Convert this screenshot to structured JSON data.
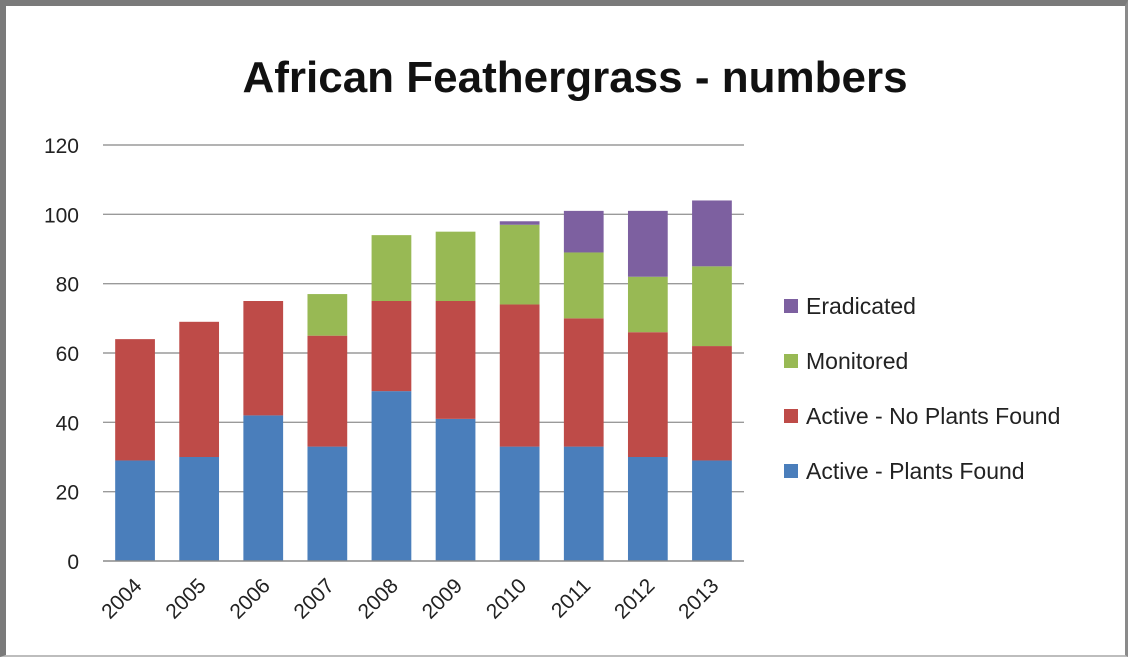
{
  "chart_data": {
    "type": "bar",
    "stacked": true,
    "title": "African Feathergrass - numbers",
    "xlabel": "",
    "ylabel": "",
    "categories": [
      "2004",
      "2005",
      "2006",
      "2007",
      "2008",
      "2009",
      "2010",
      "2011",
      "2012",
      "2013"
    ],
    "ylim": [
      0,
      120
    ],
    "y_ticks": [
      0,
      20,
      40,
      60,
      80,
      100,
      120
    ],
    "grid": true,
    "legend_position": "right",
    "series": [
      {
        "name": "Active - Plants Found",
        "color": "#4a7ebb",
        "values": [
          29,
          30,
          42,
          33,
          49,
          41,
          33,
          33,
          30,
          29
        ]
      },
      {
        "name": "Active - No Plants Found",
        "color": "#be4b48",
        "values": [
          35,
          39,
          33,
          32,
          26,
          34,
          41,
          37,
          36,
          33
        ]
      },
      {
        "name": "Monitored",
        "color": "#98b954",
        "values": [
          0,
          0,
          0,
          12,
          19,
          20,
          23,
          19,
          16,
          23
        ]
      },
      {
        "name": "Eradicated",
        "color": "#7d60a0",
        "values": [
          0,
          0,
          0,
          0,
          0,
          0,
          1,
          12,
          19,
          19
        ]
      }
    ]
  }
}
